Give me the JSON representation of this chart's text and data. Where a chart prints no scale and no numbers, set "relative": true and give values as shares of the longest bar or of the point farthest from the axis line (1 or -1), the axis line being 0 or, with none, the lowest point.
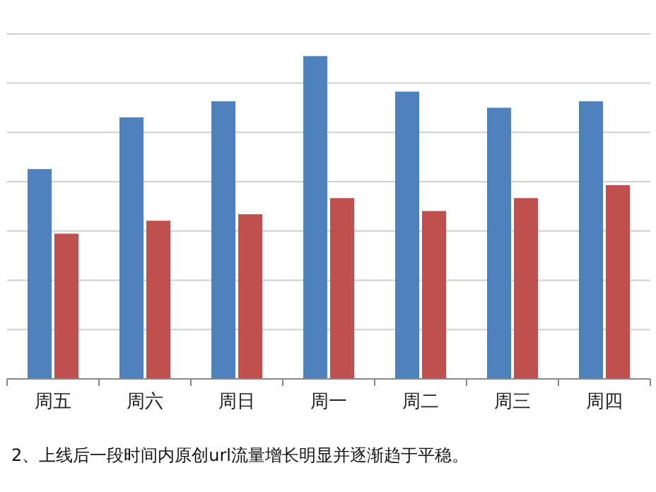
{
  "chart_data": {
    "type": "bar",
    "relative": true,
    "grid": true,
    "categories": [
      "周五",
      "周六",
      "周日",
      "周一",
      "周二",
      "周三",
      "周四"
    ],
    "series": [
      {
        "color": "#4f81bd",
        "values": [
          0.65,
          0.81,
          0.86,
          1,
          0.89,
          0.84,
          0.86
        ]
      },
      {
        "color": "#c0504d",
        "values": [
          0.45,
          0.49,
          0.51,
          0.56,
          0.52,
          0.56,
          0.6
        ]
      }
    ],
    "annotations": [
      "2、上线后一段时间内原创url流量增长明显并逐渐趋于平稳。"
    ]
  }
}
